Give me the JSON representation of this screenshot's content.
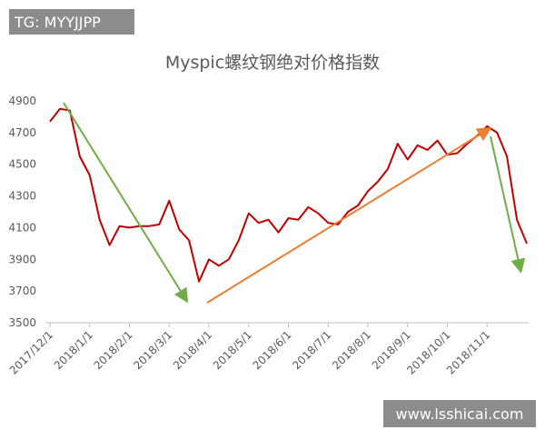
{
  "chart_data": {
    "type": "line",
    "title": "Myspic螺纹钢绝对价格指数",
    "watermark_top": "TG: MYYJJPP",
    "watermark_bottom": "www.lsshicai.com",
    "categories": [
      "2017/12/1",
      null,
      null,
      null,
      "2018/1/1",
      null,
      null,
      null,
      "2018/2/1",
      null,
      null,
      null,
      "2018/3/1",
      null,
      null,
      null,
      "2018/4/1",
      null,
      null,
      null,
      "2018/5/1",
      null,
      null,
      null,
      "2018/6/1",
      null,
      null,
      null,
      "2018/7/1",
      null,
      null,
      null,
      "2018/8/1",
      null,
      null,
      null,
      "2018/9/1",
      null,
      null,
      null,
      "2018/10/1",
      null,
      null,
      null,
      "2018/11/1",
      null,
      null,
      null,
      null
    ],
    "values": [
      4770,
      4850,
      4840,
      4550,
      4430,
      4150,
      3990,
      4110,
      4100,
      4110,
      4110,
      4120,
      4270,
      4090,
      4020,
      3760,
      3900,
      3860,
      3900,
      4020,
      4190,
      4130,
      4150,
      4070,
      4160,
      4150,
      4230,
      4190,
      4130,
      4120,
      4200,
      4240,
      4330,
      4390,
      4470,
      4630,
      4530,
      4620,
      4590,
      4650,
      4560,
      4570,
      4630,
      4680,
      4740,
      4700,
      4550,
      4150,
      4000
    ],
    "color": "#c00000",
    "ylim": [
      3500,
      4900
    ],
    "yticks": [
      3500,
      3700,
      3900,
      4100,
      4300,
      4500,
      4700,
      4900
    ],
    "grid": false
  }
}
